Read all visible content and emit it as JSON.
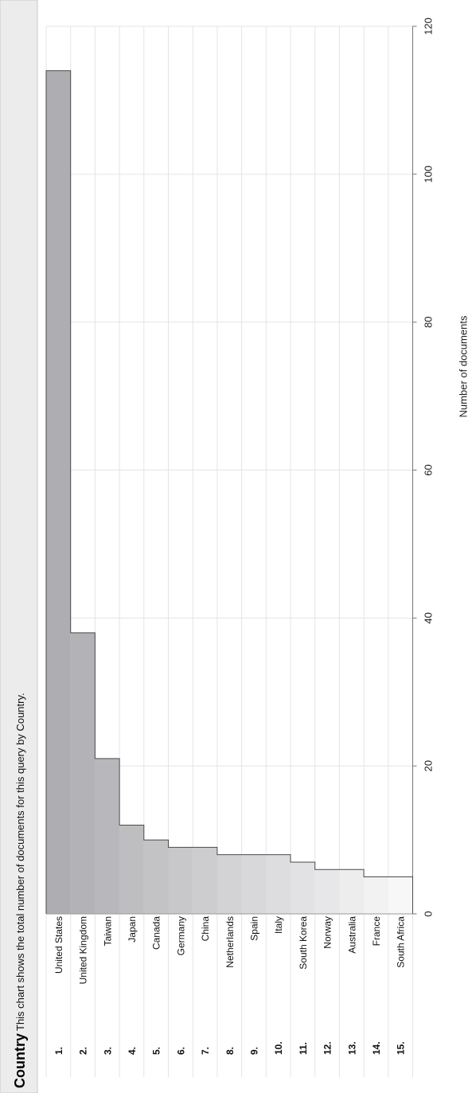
{
  "header": {
    "section": "Country",
    "description": "This chart shows the total number of documents for this query by Country."
  },
  "chart_data": {
    "type": "bar",
    "orientation": "rotated",
    "categories": [
      "United States",
      "United Kingdom",
      "Taiwan",
      "Japan",
      "Canada",
      "Germany",
      "China",
      "Netherlands",
      "Spain",
      "Italy",
      "South Korea",
      "Norway",
      "Australia",
      "France",
      "South Africa"
    ],
    "ranks": [
      "1.",
      "2.",
      "3.",
      "4.",
      "5.",
      "6.",
      "7.",
      "8.",
      "9.",
      "10.",
      "11.",
      "12.",
      "13.",
      "14.",
      "15."
    ],
    "values": [
      114,
      38,
      21,
      12,
      10,
      9,
      9,
      8,
      8,
      8,
      7,
      6,
      6,
      5,
      5
    ],
    "xlabel": "",
    "ylabel": "Number of documents",
    "ylim": [
      0,
      120
    ],
    "yticks": [
      0,
      20,
      40,
      60,
      80,
      100,
      120
    ],
    "grid": true,
    "legend": "none",
    "colors": {
      "bar_dark": "#aeaeb2",
      "bar_light": "#f7f7f8",
      "bar_stroke": "#4a4a4a",
      "grid": "#e4e4e4",
      "header_bg": "#ececec"
    }
  }
}
